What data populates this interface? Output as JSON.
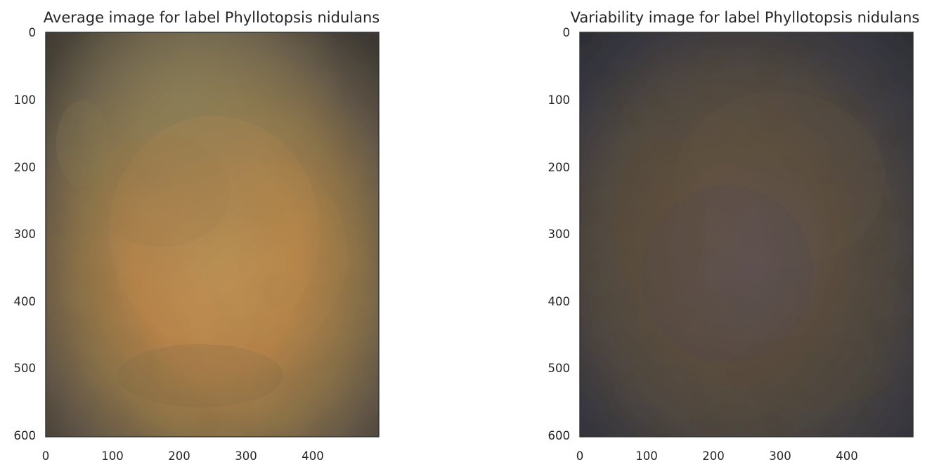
{
  "chart_data": [
    {
      "type": "image",
      "title": "Average image for label Phyllotopsis nidulans",
      "xlabel": "",
      "ylabel": "",
      "x_ticks": [
        0,
        100,
        200,
        300,
        400
      ],
      "y_ticks": [
        0,
        100,
        200,
        300,
        400,
        500,
        600
      ],
      "xlim": [
        0,
        500
      ],
      "ylim": [
        600,
        0
      ],
      "grid": false,
      "colors": {
        "edge": "#3e3a33",
        "base": "#5a5244",
        "center": "#b7844a",
        "mid": "#8d7348",
        "highlight": "#c59658"
      }
    },
    {
      "type": "image",
      "title": "Variability image for label Phyllotopsis nidulans",
      "xlabel": "",
      "ylabel": "",
      "x_ticks": [
        0,
        100,
        200,
        300,
        400
      ],
      "y_ticks": [
        0,
        100,
        200,
        300,
        400,
        500,
        600
      ],
      "xlim": [
        0,
        500
      ],
      "ylim": [
        600,
        0
      ],
      "grid": false,
      "colors": {
        "edge": "#2c2d33",
        "base": "#3d3c40",
        "center": "#5a5060",
        "mid": "#5b4f3f",
        "highlight": "#6f5b3f"
      }
    }
  ]
}
